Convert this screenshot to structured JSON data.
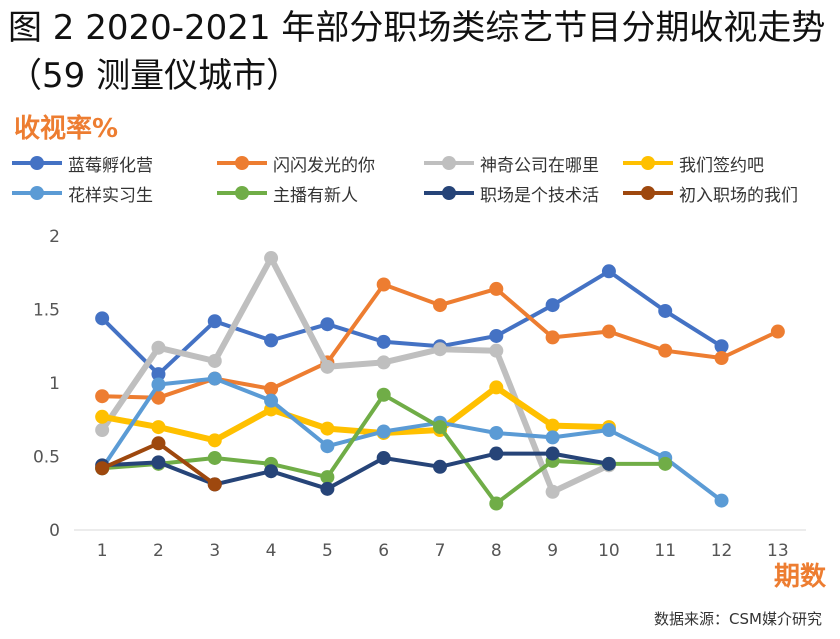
{
  "title": "图 2 2020-2021 年部分职场类综艺节目分期收视走势（59 测量仪城市）",
  "y_axis_title": "收视率%",
  "x_axis_title": "期数",
  "source": "数据来源：CSM媒介研究",
  "chart_data": {
    "type": "line",
    "title": "图 2 2020-2021 年部分职场类综艺节目分期收视走势（59 测量仪城市）",
    "xlabel": "期数",
    "ylabel": "收视率%",
    "ylim": [
      0,
      2
    ],
    "yticks": [
      "0",
      "0.5",
      "1",
      "1.5",
      "2"
    ],
    "categories": [
      "1",
      "2",
      "3",
      "4",
      "5",
      "6",
      "7",
      "8",
      "9",
      "10",
      "11",
      "12",
      "13"
    ],
    "series": [
      {
        "name": "蓝莓孵化营",
        "color": "#4472C4",
        "values": [
          1.44,
          1.06,
          1.42,
          1.29,
          1.4,
          1.28,
          1.25,
          1.32,
          1.53,
          1.76,
          1.49,
          1.25,
          null
        ]
      },
      {
        "name": "闪闪发光的你",
        "color": "#ED7D31",
        "values": [
          0.91,
          0.9,
          1.03,
          0.96,
          1.14,
          1.67,
          1.53,
          1.64,
          1.31,
          1.35,
          1.22,
          1.17,
          1.35
        ]
      },
      {
        "name": "神奇公司在哪里",
        "color": "#BFBFBF",
        "values": [
          0.68,
          1.24,
          1.15,
          1.85,
          1.11,
          1.14,
          1.23,
          1.22,
          0.26,
          0.44,
          null,
          null,
          null
        ]
      },
      {
        "name": "我们签约吧",
        "color": "#FFC000",
        "values": [
          0.77,
          0.7,
          0.61,
          0.82,
          0.69,
          0.66,
          0.68,
          0.97,
          0.71,
          0.7,
          null,
          null,
          null
        ]
      },
      {
        "name": "花样实习生",
        "color": "#5B9BD5",
        "values": [
          0.42,
          0.99,
          1.03,
          0.88,
          0.57,
          0.67,
          0.73,
          0.66,
          0.63,
          0.68,
          0.49,
          0.2,
          null
        ]
      },
      {
        "name": "主播有新人",
        "color": "#70AD47",
        "values": [
          0.42,
          0.45,
          0.49,
          0.45,
          0.36,
          0.92,
          0.7,
          0.18,
          0.47,
          0.45,
          0.45,
          null,
          null
        ]
      },
      {
        "name": "职场是个技术活",
        "color": "#264478",
        "values": [
          0.44,
          0.46,
          0.31,
          0.4,
          0.28,
          0.49,
          0.43,
          0.52,
          0.52,
          0.45,
          null,
          null,
          null
        ]
      },
      {
        "name": "初入职场的我们",
        "color": "#9E480E",
        "values": [
          0.42,
          0.59,
          0.31,
          null,
          null,
          null,
          null,
          null,
          null,
          null,
          null,
          null,
          null
        ]
      }
    ],
    "legend_position": "top"
  }
}
